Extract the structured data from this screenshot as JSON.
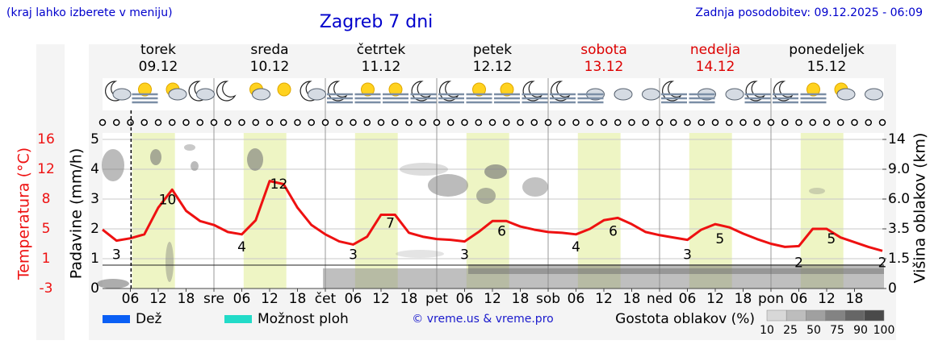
{
  "header": {
    "hint": "(kraj lahko izberete v meniju)",
    "title": "Zagreb 7 dni",
    "updated": "Zadnja posodobitev: 09.12.2025 - 06:09"
  },
  "days": [
    {
      "name": "torek",
      "date": "09.12",
      "color": "#000000"
    },
    {
      "name": "sreda",
      "date": "10.12",
      "color": "#000000"
    },
    {
      "name": "četrtek",
      "date": "11.12",
      "color": "#000000"
    },
    {
      "name": "petek",
      "date": "12.12",
      "color": "#000000"
    },
    {
      "name": "sobota",
      "date": "13.12",
      "color": "#dd0000"
    },
    {
      "name": "nedelja",
      "date": "14.12",
      "color": "#dd0000"
    },
    {
      "name": "ponedeljek",
      "date": "15.12",
      "color": "#000000"
    }
  ],
  "chart_data": {
    "type": "line",
    "x": [
      0,
      3,
      6,
      9,
      12,
      15,
      18,
      21,
      24,
      27,
      30,
      33,
      36,
      39,
      42,
      45,
      48,
      51,
      54,
      57,
      60,
      63,
      66,
      69,
      72,
      75,
      78,
      81,
      84,
      87,
      90,
      93,
      96,
      99,
      102,
      105,
      108,
      111,
      114,
      117,
      120,
      123,
      126,
      129,
      132,
      135,
      138,
      141,
      144,
      147,
      150,
      153,
      156,
      159,
      162,
      165,
      168
    ],
    "xlim": [
      0,
      168
    ],
    "xticks": [
      {
        "value": 6,
        "label": "06"
      },
      12,
      18,
      {
        "value": 24,
        "label": "sre"
      },
      {
        "value": 30,
        "label": "06"
      },
      {
        "value": 36,
        "label": "12"
      },
      {
        "value": 42,
        "label": "18"
      },
      {
        "value": 48,
        "label": "čet"
      },
      {
        "value": 54,
        "label": "06"
      },
      {
        "value": 60,
        "label": "12"
      },
      {
        "value": 66,
        "label": "18"
      },
      {
        "value": 72,
        "label": "pet"
      },
      {
        "value": 78,
        "label": "06"
      },
      {
        "value": 84,
        "label": "12"
      },
      {
        "value": 90,
        "label": "18"
      },
      {
        "value": 96,
        "label": "sob"
      },
      {
        "value": 102,
        "label": "06"
      },
      {
        "value": 108,
        "label": "12"
      },
      {
        "value": 114,
        "label": "18"
      },
      {
        "value": 120,
        "label": "ned"
      },
      {
        "value": 126,
        "label": "06"
      },
      {
        "value": 132,
        "label": "12"
      },
      {
        "value": 138,
        "label": "18"
      },
      {
        "value": 144,
        "label": "pon"
      },
      {
        "value": 150,
        "label": "06"
      },
      {
        "value": 156,
        "label": "12"
      },
      {
        "value": 162,
        "label": "18"
      }
    ],
    "y_label": "Temperatura (°C)",
    "ylim": [
      -3,
      16
    ],
    "yticks": [
      -3,
      {
        "value": 0.8,
        "label": "1"
      },
      {
        "value": 4.6,
        "label": "5"
      },
      {
        "value": 8.4,
        "label": "8"
      },
      {
        "value": 12.2,
        "label": "12"
      },
      16
    ],
    "series": [
      {
        "color": "#ee1111",
        "values": [
          4.5,
          3.1,
          3.4,
          3.9,
          7.3,
          9.6,
          6.9,
          5.6,
          5.1,
          4.2,
          3.9,
          5.7,
          10.7,
          10.3,
          7.3,
          5.1,
          3.9,
          3.0,
          2.6,
          3.6,
          6.4,
          6.4,
          4.1,
          3.6,
          3.3,
          3.2,
          3.0,
          4.2,
          5.6,
          5.6,
          4.9,
          4.5,
          4.2,
          4.1,
          3.9,
          4.6,
          5.7,
          6.0,
          5.2,
          4.2,
          3.8,
          3.5,
          3.2,
          4.5,
          5.2,
          4.8,
          4.0,
          3.3,
          2.7,
          2.3,
          2.4,
          4.6,
          4.6,
          3.5,
          2.9,
          2.3,
          1.8
        ]
      }
    ],
    "extremes": {
      "x": [
        3,
        14,
        30,
        38,
        54,
        62,
        78,
        86,
        102,
        110,
        126,
        133,
        150,
        157,
        168
      ],
      "values": [
        3,
        10,
        4,
        12,
        3,
        7,
        3,
        6,
        4,
        6,
        3,
        5,
        2,
        5,
        2
      ]
    },
    "precip_label": "Padavine (mm/h)",
    "precip_ylim": [
      0,
      5
    ],
    "precip_yticks": [
      0,
      1,
      2,
      3,
      4,
      5
    ],
    "y2_label": "Višina oblakov (km)",
    "y2scale": "piecewise",
    "y2ticks": [
      0,
      1.5,
      3.5,
      {
        "value": 6,
        "label": "6.0"
      },
      {
        "value": 9,
        "label": "9.0"
      },
      14
    ],
    "now": 6.15,
    "daylight": [
      [
        6.4,
        15.6
      ],
      [
        30.4,
        39.6
      ],
      [
        54.4,
        63.6
      ],
      [
        78.4,
        87.6
      ],
      [
        102.4,
        111.6
      ],
      [
        126.4,
        135.6
      ],
      [
        150.4,
        159.6
      ]
    ],
    "daylight_color": "#eef5c4",
    "legend": [
      {
        "name": "Dež",
        "color": "#0a5ff5"
      },
      {
        "name": "Možnost ploh",
        "color": "#22dbc8"
      }
    ],
    "credit": "© vreme.us & vreme.pro",
    "cloud_scale": {
      "label": "Gostota oblakov (%)",
      "ticks": [
        10,
        25,
        50,
        75,
        90,
        100
      ],
      "colors": [
        "#d8d8d8",
        "#bdbdbd",
        "#a0a0a0",
        "#838383",
        "#666666",
        "#4a4a4a"
      ]
    }
  }
}
